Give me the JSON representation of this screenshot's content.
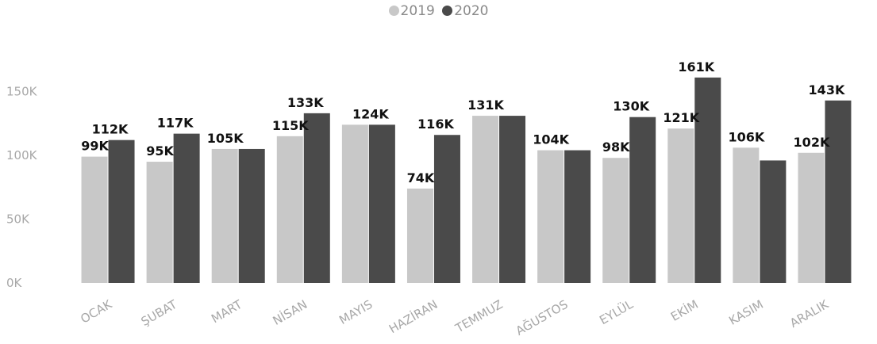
{
  "chart_data": {
    "type": "bar",
    "categories": [
      "OCAK",
      "ŞUBAT",
      "MART",
      "NİSAN",
      "MAYIS",
      "HAZİRAN",
      "TEMMUZ",
      "AĞUSTOS",
      "EYLÜL",
      "EKİM",
      "KASIM",
      "ARALIK"
    ],
    "series": [
      {
        "name": "2019",
        "color": "#c8c8c8",
        "values": [
          99,
          95,
          105,
          115,
          124,
          74,
          131,
          104,
          98,
          121,
          106,
          102
        ],
        "labels": [
          "99K",
          "95K",
          "105K",
          "115K",
          "",
          "74K",
          "131K",
          "104K",
          "98K",
          "121K",
          "106K",
          "102K"
        ]
      },
      {
        "name": "2020",
        "color": "#4a4a4a",
        "values": [
          112,
          117,
          105,
          133,
          124,
          116,
          131,
          104,
          130,
          161,
          96,
          143
        ],
        "labels": [
          "112K",
          "117K",
          "",
          "133K",
          "124K",
          "116K",
          "",
          "",
          "130K",
          "161K",
          "",
          "143K"
        ]
      }
    ],
    "yticks": [
      "0K",
      "50K",
      "100K",
      "150K"
    ],
    "ytick_values": [
      0,
      50,
      100,
      150
    ],
    "ylim": [
      0,
      165
    ],
    "ylabel_unit": "K",
    "grid": false,
    "legend_position": "top-center"
  }
}
